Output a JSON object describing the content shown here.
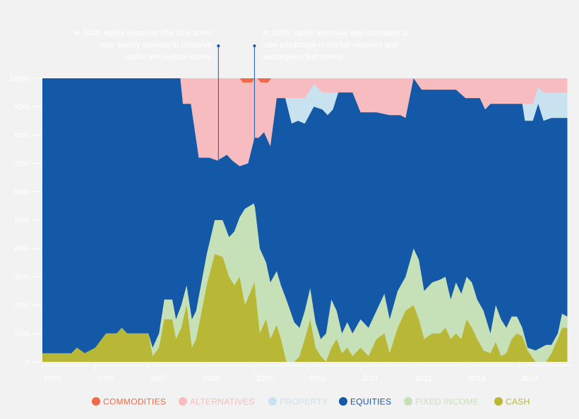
{
  "chart_data": {
    "type": "area",
    "stacked": true,
    "normalized_percent": true,
    "x_label": "",
    "y_label": "",
    "xlim": [
      2005,
      2015
    ],
    "ylim": [
      0,
      100
    ],
    "y_ticks": [
      {
        "value": 0,
        "label": "0"
      },
      {
        "value": 10,
        "label": "10%"
      },
      {
        "value": 20,
        "label": "20%"
      },
      {
        "value": 30,
        "label": "30%"
      },
      {
        "value": 40,
        "label": "40%"
      },
      {
        "value": 50,
        "label": "50%"
      },
      {
        "value": 60,
        "label": "60%"
      },
      {
        "value": 70,
        "label": "70%"
      },
      {
        "value": 80,
        "label": "80%"
      },
      {
        "value": 90,
        "label": "90%"
      },
      {
        "value": 100,
        "label": "100%"
      }
    ],
    "x_ticks": [
      {
        "value": 2005,
        "label": "2005"
      },
      {
        "value": 2006,
        "label": "2006"
      },
      {
        "value": 2007,
        "label": "2007"
      },
      {
        "value": 2008,
        "label": "2008"
      },
      {
        "value": 2009,
        "label": "2009"
      },
      {
        "value": 2010,
        "label": "2010"
      },
      {
        "value": 2011,
        "label": "2011"
      },
      {
        "value": 2012,
        "label": "2012"
      },
      {
        "value": 2013,
        "label": "2013"
      },
      {
        "value": 2014,
        "label": "2014"
      }
    ],
    "legend_position": "bottom",
    "stack_order": [
      "cash",
      "fixed_income",
      "equities",
      "property",
      "alternatives",
      "commodities"
    ],
    "legend_order": [
      "commodities",
      "alternatives",
      "property",
      "equities",
      "fixed_income",
      "cash"
    ],
    "series": {
      "cash": {
        "name": "CASH",
        "color": "#b8b836",
        "points": [
          [
            2005,
            3
          ],
          [
            2005.55,
            3
          ],
          [
            2005.65,
            5
          ],
          [
            2005.8,
            3
          ],
          [
            2006.0,
            5
          ],
          [
            2006.2,
            10
          ],
          [
            2006.4,
            10
          ],
          [
            2006.5,
            12
          ],
          [
            2006.6,
            10
          ],
          [
            2007.0,
            10
          ],
          [
            2007.08,
            2
          ],
          [
            2007.2,
            5
          ],
          [
            2007.3,
            15
          ],
          [
            2007.45,
            15
          ],
          [
            2007.52,
            8
          ],
          [
            2007.62,
            12
          ],
          [
            2007.72,
            20
          ],
          [
            2007.82,
            5
          ],
          [
            2007.9,
            8
          ],
          [
            2008.1,
            27
          ],
          [
            2008.25,
            38
          ],
          [
            2008.4,
            37
          ],
          [
            2008.52,
            30
          ],
          [
            2008.62,
            27
          ],
          [
            2008.72,
            30
          ],
          [
            2008.82,
            20
          ],
          [
            2009.0,
            28
          ],
          [
            2009.1,
            10
          ],
          [
            2009.22,
            15
          ],
          [
            2009.3,
            8
          ],
          [
            2009.42,
            13
          ],
          [
            2009.5,
            8
          ],
          [
            2009.6,
            0
          ],
          [
            2009.75,
            0
          ],
          [
            2009.85,
            2
          ],
          [
            2009.95,
            8
          ],
          [
            2010.05,
            15
          ],
          [
            2010.15,
            5
          ],
          [
            2010.25,
            2
          ],
          [
            2010.35,
            0
          ],
          [
            2010.45,
            5
          ],
          [
            2010.55,
            8
          ],
          [
            2010.65,
            3
          ],
          [
            2010.75,
            5
          ],
          [
            2010.85,
            2
          ],
          [
            2011.0,
            5
          ],
          [
            2011.15,
            2
          ],
          [
            2011.3,
            8
          ],
          [
            2011.45,
            10
          ],
          [
            2011.55,
            3
          ],
          [
            2011.7,
            12
          ],
          [
            2011.85,
            18
          ],
          [
            2012.0,
            20
          ],
          [
            2012.1,
            15
          ],
          [
            2012.2,
            8
          ],
          [
            2012.35,
            10
          ],
          [
            2012.5,
            10
          ],
          [
            2012.6,
            12
          ],
          [
            2012.7,
            8
          ],
          [
            2012.8,
            10
          ],
          [
            2012.9,
            8
          ],
          [
            2013.0,
            15
          ],
          [
            2013.1,
            12
          ],
          [
            2013.2,
            8
          ],
          [
            2013.32,
            4
          ],
          [
            2013.45,
            3
          ],
          [
            2013.55,
            7
          ],
          [
            2013.65,
            2
          ],
          [
            2013.75,
            3
          ],
          [
            2013.85,
            8
          ],
          [
            2013.95,
            10
          ],
          [
            2014.05,
            9
          ],
          [
            2014.15,
            4
          ],
          [
            2014.3,
            0
          ],
          [
            2014.5,
            0
          ],
          [
            2014.6,
            3
          ],
          [
            2014.72,
            8
          ],
          [
            2014.8,
            12
          ],
          [
            2014.9,
            12
          ]
        ]
      },
      "fixed_income": {
        "name": "FIXED INCOME",
        "color": "#c6e0b8",
        "points": [
          [
            2005,
            3
          ],
          [
            2005.55,
            3
          ],
          [
            2005.65,
            5
          ],
          [
            2005.8,
            3
          ],
          [
            2006.0,
            5
          ],
          [
            2006.2,
            10
          ],
          [
            2006.4,
            10
          ],
          [
            2006.5,
            12
          ],
          [
            2006.6,
            10
          ],
          [
            2007.0,
            10
          ],
          [
            2007.08,
            5
          ],
          [
            2007.2,
            10
          ],
          [
            2007.3,
            22
          ],
          [
            2007.45,
            22
          ],
          [
            2007.52,
            15
          ],
          [
            2007.62,
            20
          ],
          [
            2007.72,
            27
          ],
          [
            2007.82,
            15
          ],
          [
            2007.9,
            18
          ],
          [
            2008.1,
            38
          ],
          [
            2008.25,
            50
          ],
          [
            2008.4,
            50
          ],
          [
            2008.52,
            44
          ],
          [
            2008.62,
            46
          ],
          [
            2008.72,
            51
          ],
          [
            2008.82,
            54
          ],
          [
            2009.0,
            56
          ],
          [
            2009.1,
            40
          ],
          [
            2009.22,
            35
          ],
          [
            2009.3,
            28
          ],
          [
            2009.42,
            32
          ],
          [
            2009.5,
            27
          ],
          [
            2009.6,
            22
          ],
          [
            2009.75,
            14
          ],
          [
            2009.85,
            12
          ],
          [
            2009.95,
            18
          ],
          [
            2010.05,
            26
          ],
          [
            2010.15,
            14
          ],
          [
            2010.25,
            8
          ],
          [
            2010.35,
            10
          ],
          [
            2010.45,
            22
          ],
          [
            2010.55,
            18
          ],
          [
            2010.65,
            10
          ],
          [
            2010.75,
            14
          ],
          [
            2010.85,
            10
          ],
          [
            2011.0,
            15
          ],
          [
            2011.15,
            12
          ],
          [
            2011.3,
            18
          ],
          [
            2011.45,
            24
          ],
          [
            2011.55,
            15
          ],
          [
            2011.7,
            25
          ],
          [
            2011.85,
            30
          ],
          [
            2012.0,
            40
          ],
          [
            2012.1,
            36
          ],
          [
            2012.2,
            25
          ],
          [
            2012.35,
            28
          ],
          [
            2012.5,
            29
          ],
          [
            2012.6,
            30
          ],
          [
            2012.7,
            22
          ],
          [
            2012.8,
            28
          ],
          [
            2012.9,
            24
          ],
          [
            2013.0,
            30
          ],
          [
            2013.1,
            28
          ],
          [
            2013.2,
            22
          ],
          [
            2013.32,
            18
          ],
          [
            2013.45,
            10
          ],
          [
            2013.55,
            20
          ],
          [
            2013.65,
            15
          ],
          [
            2013.75,
            12
          ],
          [
            2013.85,
            16
          ],
          [
            2013.95,
            16
          ],
          [
            2014.05,
            12
          ],
          [
            2014.15,
            5
          ],
          [
            2014.3,
            4
          ],
          [
            2014.5,
            6
          ],
          [
            2014.6,
            6
          ],
          [
            2014.72,
            10
          ],
          [
            2014.8,
            17
          ],
          [
            2014.9,
            16
          ]
        ]
      },
      "equities": {
        "name": "EQUITIES",
        "color": "#1458a8",
        "points": [
          [
            2005,
            100
          ],
          [
            2007.6,
            100
          ],
          [
            2007.65,
            91
          ],
          [
            2007.8,
            91
          ],
          [
            2007.95,
            72
          ],
          [
            2008.15,
            72
          ],
          [
            2008.3,
            71
          ],
          [
            2008.48,
            73
          ],
          [
            2008.58,
            71
          ],
          [
            2008.72,
            69
          ],
          [
            2008.88,
            70
          ],
          [
            2009.0,
            79
          ],
          [
            2009.08,
            79
          ],
          [
            2009.18,
            81
          ],
          [
            2009.3,
            76
          ],
          [
            2009.42,
            93
          ],
          [
            2009.58,
            93
          ],
          [
            2009.7,
            84
          ],
          [
            2009.82,
            85
          ],
          [
            2009.95,
            84
          ],
          [
            2010.12,
            90
          ],
          [
            2010.28,
            89
          ],
          [
            2010.38,
            87
          ],
          [
            2010.48,
            89
          ],
          [
            2010.58,
            95
          ],
          [
            2010.85,
            95
          ],
          [
            2011.0,
            88
          ],
          [
            2011.3,
            88
          ],
          [
            2011.55,
            87
          ],
          [
            2011.75,
            87
          ],
          [
            2011.85,
            86
          ],
          [
            2012.0,
            100
          ],
          [
            2012.15,
            96
          ],
          [
            2012.5,
            96
          ],
          [
            2012.8,
            96
          ],
          [
            2012.98,
            93
          ],
          [
            2013.25,
            93
          ],
          [
            2013.35,
            89
          ],
          [
            2013.45,
            91
          ],
          [
            2013.6,
            91
          ],
          [
            2013.75,
            91
          ],
          [
            2014.05,
            91
          ],
          [
            2014.1,
            85
          ],
          [
            2014.25,
            85
          ],
          [
            2014.35,
            91
          ],
          [
            2014.45,
            85
          ],
          [
            2014.6,
            86
          ],
          [
            2014.9,
            86
          ]
        ]
      },
      "property": {
        "name": "PROPERTY",
        "color": "#c8e2f0",
        "points": [
          [
            2005,
            100
          ],
          [
            2007.6,
            100
          ],
          [
            2007.65,
            91
          ],
          [
            2007.8,
            91
          ],
          [
            2007.95,
            72
          ],
          [
            2008.15,
            72
          ],
          [
            2008.3,
            71
          ],
          [
            2008.48,
            73
          ],
          [
            2008.58,
            71
          ],
          [
            2008.72,
            69
          ],
          [
            2008.88,
            70
          ],
          [
            2009.0,
            79
          ],
          [
            2009.08,
            79
          ],
          [
            2009.18,
            81
          ],
          [
            2009.3,
            76
          ],
          [
            2009.42,
            93
          ],
          [
            2009.58,
            93
          ],
          [
            2009.7,
            93
          ],
          [
            2009.82,
            93
          ],
          [
            2009.95,
            93
          ],
          [
            2010.12,
            98
          ],
          [
            2010.28,
            95
          ],
          [
            2010.38,
            95
          ],
          [
            2010.48,
            95
          ],
          [
            2010.58,
            95
          ],
          [
            2010.85,
            95
          ],
          [
            2011.0,
            88
          ],
          [
            2011.3,
            88
          ],
          [
            2011.55,
            87
          ],
          [
            2011.75,
            87
          ],
          [
            2011.85,
            86
          ],
          [
            2012.0,
            100
          ],
          [
            2012.15,
            96
          ],
          [
            2012.5,
            96
          ],
          [
            2012.8,
            96
          ],
          [
            2012.98,
            93
          ],
          [
            2013.25,
            93
          ],
          [
            2013.35,
            89
          ],
          [
            2013.45,
            91
          ],
          [
            2013.6,
            91
          ],
          [
            2013.75,
            91
          ],
          [
            2014.05,
            91
          ],
          [
            2014.1,
            91
          ],
          [
            2014.25,
            91
          ],
          [
            2014.35,
            97
          ],
          [
            2014.45,
            95
          ],
          [
            2014.6,
            95
          ],
          [
            2014.9,
            95
          ]
        ]
      },
      "alternatives": {
        "name": "ALTERNATIVES",
        "color": "#f6bcbf",
        "points": [
          [
            2005,
            100
          ],
          [
            2014.9,
            100
          ]
        ]
      },
      "commodities": {
        "name": "COMMODITIES",
        "color": "#ee6a48",
        "bands": [
          [
            [
              2008.72,
              100,
              100
            ],
            [
              2008.78,
              100,
              98.5
            ],
            [
              2008.95,
              100,
              98.5
            ],
            [
              2009.0,
              100,
              100
            ]
          ],
          [
            [
              2009.05,
              100,
              100
            ],
            [
              2009.12,
              100,
              98.5
            ],
            [
              2009.25,
              100,
              98.5
            ],
            [
              2009.32,
              100,
              100
            ]
          ]
        ]
      }
    },
    "annotations": [
      {
        "x": 2008.32,
        "target_y": 50,
        "lines": [
          "In 2008, equity exposure (the blue area)",
          "was quickly reduced to preserve",
          "capital and reduce losses"
        ],
        "align": "end"
      },
      {
        "x": 2009.0,
        "target_y": 55,
        "lines": [
          "In 2009, equity exposure was increased to",
          "take advantage of market recovery and",
          "subsequent bull market"
        ],
        "align": "start"
      }
    ]
  }
}
